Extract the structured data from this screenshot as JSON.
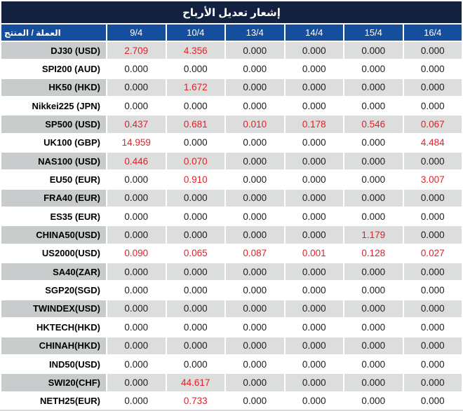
{
  "header": {
    "title": "إشعار تعديل الأرباح"
  },
  "colors": {
    "title_bar": "#132140",
    "header_row": "#164e9e",
    "row_gray_label": "#c9cccd",
    "row_gray_value": "#dcdddd",
    "value_black": "#1c1c1c",
    "value_red": "#e51e25",
    "header_text": "#ffffff"
  },
  "table": {
    "product_column_header": "العملة / المنتج",
    "date_columns": [
      "9/4",
      "10/4",
      "13/4",
      "14/4",
      "15/4",
      "16/4"
    ],
    "rows": [
      {
        "product": "DJ30 (USD)",
        "values": [
          "2.709",
          "4.356",
          "0.000",
          "0.000",
          "0.000",
          "0.000"
        ],
        "highlighted": [
          true,
          true,
          false,
          false,
          false,
          false
        ]
      },
      {
        "product": "SPI200 (AUD)",
        "values": [
          "0.000",
          "0.000",
          "0.000",
          "0.000",
          "0.000",
          "0.000"
        ],
        "highlighted": [
          false,
          false,
          false,
          false,
          false,
          false
        ]
      },
      {
        "product": "HK50 (HKD)",
        "values": [
          "0.000",
          "1.672",
          "0.000",
          "0.000",
          "0.000",
          "0.000"
        ],
        "highlighted": [
          false,
          true,
          false,
          false,
          false,
          false
        ]
      },
      {
        "product": "Nikkei225 (JPN)",
        "values": [
          "0.000",
          "0.000",
          "0.000",
          "0.000",
          "0.000",
          "0.000"
        ],
        "highlighted": [
          false,
          false,
          false,
          false,
          false,
          false
        ]
      },
      {
        "product": "SP500 (USD)",
        "values": [
          "0.437",
          "0.681",
          "0.010",
          "0.178",
          "0.546",
          "0.067"
        ],
        "highlighted": [
          true,
          true,
          true,
          true,
          true,
          true
        ]
      },
      {
        "product": "UK100 (GBP)",
        "values": [
          "14.959",
          "0.000",
          "0.000",
          "0.000",
          "0.000",
          "4.484"
        ],
        "highlighted": [
          true,
          false,
          false,
          false,
          false,
          true
        ]
      },
      {
        "product": "NAS100 (USD)",
        "values": [
          "0.446",
          "0.070",
          "0.000",
          "0.000",
          "0.000",
          "0.000"
        ],
        "highlighted": [
          true,
          true,
          false,
          false,
          false,
          false
        ]
      },
      {
        "product": "EU50 (EUR)",
        "values": [
          "0.000",
          "0.910",
          "0.000",
          "0.000",
          "0.000",
          "3.007"
        ],
        "highlighted": [
          false,
          true,
          false,
          false,
          false,
          true
        ]
      },
      {
        "product": "FRA40 (EUR)",
        "values": [
          "0.000",
          "0.000",
          "0.000",
          "0.000",
          "0.000",
          "0.000"
        ],
        "highlighted": [
          false,
          false,
          false,
          false,
          false,
          false
        ]
      },
      {
        "product": "ES35 (EUR)",
        "values": [
          "0.000",
          "0.000",
          "0.000",
          "0.000",
          "0.000",
          "0.000"
        ],
        "highlighted": [
          false,
          false,
          false,
          false,
          false,
          false
        ]
      },
      {
        "product": "CHINA50(USD)",
        "values": [
          "0.000",
          "0.000",
          "0.000",
          "0.000",
          "1.179",
          "0.000"
        ],
        "highlighted": [
          false,
          false,
          false,
          false,
          true,
          false
        ]
      },
      {
        "product": "US2000(USD)",
        "values": [
          "0.090",
          "0.065",
          "0.087",
          "0.001",
          "0.128",
          "0.027"
        ],
        "highlighted": [
          true,
          true,
          true,
          true,
          true,
          true
        ]
      },
      {
        "product": "SA40(ZAR)",
        "values": [
          "0.000",
          "0.000",
          "0.000",
          "0.000",
          "0.000",
          "0.000"
        ],
        "highlighted": [
          false,
          false,
          false,
          false,
          false,
          false
        ]
      },
      {
        "product": "SGP20(SGD)",
        "values": [
          "0.000",
          "0.000",
          "0.000",
          "0.000",
          "0.000",
          "0.000"
        ],
        "highlighted": [
          false,
          false,
          false,
          false,
          false,
          false
        ]
      },
      {
        "product": "TWINDEX(USD)",
        "values": [
          "0.000",
          "0.000",
          "0.000",
          "0.000",
          "0.000",
          "0.000"
        ],
        "highlighted": [
          false,
          false,
          false,
          false,
          false,
          false
        ]
      },
      {
        "product": "HKTECH(HKD)",
        "values": [
          "0.000",
          "0.000",
          "0.000",
          "0.000",
          "0.000",
          "0.000"
        ],
        "highlighted": [
          false,
          false,
          false,
          false,
          false,
          false
        ]
      },
      {
        "product": "CHINAH(HKD)",
        "values": [
          "0.000",
          "0.000",
          "0.000",
          "0.000",
          "0.000",
          "0.000"
        ],
        "highlighted": [
          false,
          false,
          false,
          false,
          false,
          false
        ]
      },
      {
        "product": "IND50(USD)",
        "values": [
          "0.000",
          "0.000",
          "0.000",
          "0.000",
          "0.000",
          "0.000"
        ],
        "highlighted": [
          false,
          false,
          false,
          false,
          false,
          false
        ]
      },
      {
        "product": "SWI20(CHF)",
        "values": [
          "0.000",
          "44.617",
          "0.000",
          "0.000",
          "0.000",
          "0.000"
        ],
        "highlighted": [
          false,
          true,
          false,
          false,
          false,
          false
        ]
      },
      {
        "product": "NETH25(EUR)",
        "values": [
          "0.000",
          "0.733",
          "0.000",
          "0.000",
          "0.000",
          "0.000"
        ],
        "highlighted": [
          false,
          true,
          false,
          false,
          false,
          false
        ]
      }
    ]
  }
}
